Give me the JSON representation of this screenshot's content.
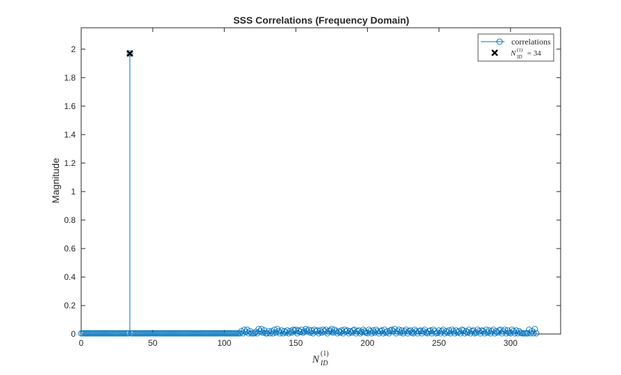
{
  "chart_data": {
    "type": "stem",
    "title": "SSS Correlations (Frequency Domain)",
    "ylabel": "Magnitude",
    "xlabel": {
      "base": "N",
      "superscript": "(1)",
      "subscript": "ID"
    },
    "xlim": [
      0,
      335
    ],
    "ylim": [
      0,
      2.15
    ],
    "xticks": [
      0,
      50,
      100,
      150,
      200,
      250,
      300
    ],
    "yticks": [
      0,
      0.2,
      0.4,
      0.6,
      0.8,
      1,
      1.2,
      1.4,
      1.6,
      1.8,
      2
    ],
    "ytick_labels": [
      "0",
      "0.2",
      "0.4",
      "0.6",
      "0.8",
      "1",
      "1.2",
      "1.4",
      "1.6",
      "1.8",
      "2"
    ],
    "series": [
      {
        "name": "correlations",
        "style": "stem-open-circle",
        "color": "#0072BD",
        "x_start": 0,
        "values": [
          0.005,
          0.005,
          0.005,
          0.005,
          0.005,
          0.005,
          0.005,
          0.005,
          0.005,
          0.005,
          0.005,
          0.005,
          0.005,
          0.005,
          0.005,
          0.005,
          0.005,
          0.005,
          0.005,
          0.005,
          0.005,
          0.005,
          0.005,
          0.005,
          0.005,
          0.005,
          0.005,
          0.005,
          0.005,
          0.005,
          0.005,
          0.005,
          0.005,
          0.005,
          1.97,
          0.005,
          0.005,
          0.005,
          0.005,
          0.005,
          0.005,
          0.005,
          0.005,
          0.005,
          0.005,
          0.005,
          0.005,
          0.005,
          0.005,
          0.005,
          0.005,
          0.005,
          0.005,
          0.005,
          0.005,
          0.005,
          0.005,
          0.005,
          0.005,
          0.005,
          0.005,
          0.005,
          0.005,
          0.005,
          0.005,
          0.005,
          0.005,
          0.005,
          0.005,
          0.005,
          0.005,
          0.005,
          0.005,
          0.005,
          0.005,
          0.005,
          0.005,
          0.005,
          0.005,
          0.005,
          0.005,
          0.005,
          0.005,
          0.005,
          0.005,
          0.005,
          0.005,
          0.005,
          0.005,
          0.005,
          0.005,
          0.005,
          0.005,
          0.005,
          0.005,
          0.005,
          0.005,
          0.005,
          0.005,
          0.005,
          0.005,
          0.005,
          0.005,
          0.005,
          0.005,
          0.005,
          0.005,
          0.005,
          0.005,
          0.005,
          0.005,
          0.005,
          0.02,
          0.005,
          0.03,
          0.015,
          0.03,
          0.005,
          0.02,
          0.005,
          0.005,
          0.005,
          0.015,
          0.005,
          0.035,
          0.02,
          0.035,
          0.01,
          0.025,
          0.005,
          0.005,
          0.02,
          0.005,
          0.02,
          0.005,
          0.03,
          0.01,
          0.035,
          0.02,
          0.005,
          0.025,
          0.005,
          0.02,
          0.01,
          0.025,
          0.005,
          0.02,
          0.01,
          0.03,
          0.025,
          0.03,
          0.005,
          0.025,
          0.015,
          0.03,
          0.01,
          0.02,
          0.035,
          0.02,
          0.03,
          0.01,
          0.025,
          0.005,
          0.03,
          0.02,
          0.025,
          0.005,
          0.025,
          0.01,
          0.03,
          0.02,
          0.03,
          0.005,
          0.02,
          0.025,
          0.035,
          0.01,
          0.03,
          0.02,
          0.005,
          0.02,
          0.01,
          0.025,
          0.005,
          0.03,
          0.02,
          0.025,
          0.005,
          0.02,
          0.01,
          0.025,
          0.03,
          0.005,
          0.02,
          0.025,
          0.005,
          0.015,
          0.03,
          0.02,
          0.01,
          0.005,
          0.03,
          0.02,
          0.005,
          0.025,
          0.01,
          0.03,
          0.02,
          0.005,
          0.02,
          0.025,
          0.005,
          0.03,
          0.01,
          0.02,
          0.005,
          0.025,
          0.03,
          0.02,
          0.035,
          0.005,
          0.02,
          0.03,
          0.01,
          0.025,
          0.005,
          0.02,
          0.03,
          0.005,
          0.02,
          0.025,
          0.01,
          0.005,
          0.03,
          0.02,
          0.005,
          0.02,
          0.025,
          0.005,
          0.02,
          0.03,
          0.01,
          0.005,
          0.02,
          0.025,
          0.005,
          0.03,
          0.02,
          0.005,
          0.01,
          0.025,
          0.005,
          0.02,
          0.03,
          0.005,
          0.02,
          0.01,
          0.025,
          0.005,
          0.03,
          0.02,
          0.005,
          0.025,
          0.01,
          0.02,
          0.005,
          0.03,
          0.025,
          0.005,
          0.02,
          0.01,
          0.03,
          0.005,
          0.02,
          0.025,
          0.005,
          0.01,
          0.03,
          0.02,
          0.005,
          0.025,
          0.02,
          0.005,
          0.03,
          0.01,
          0.025,
          0.005,
          0.02,
          0.03,
          0.005,
          0.02,
          0.01,
          0.025,
          0.03,
          0.005,
          0.02,
          0.03,
          0.005,
          0.025,
          0.01,
          0.005,
          0.03,
          0.02,
          0.005,
          0.025,
          0.005,
          0.02,
          0.01,
          0.005,
          0.005,
          0.005,
          0.005,
          0.005,
          0.03,
          0.005,
          0.02,
          0.005,
          0.035,
          0.005
        ]
      },
      {
        "name_parts": {
          "base": "N",
          "superscript": "(1)",
          "subscript": "ID",
          "suffix": " = 34"
        },
        "style": "marker-x",
        "color": "#000000",
        "x": [
          34
        ],
        "y": [
          1.97
        ]
      }
    ],
    "legend_position": "top-right",
    "grid": false
  }
}
